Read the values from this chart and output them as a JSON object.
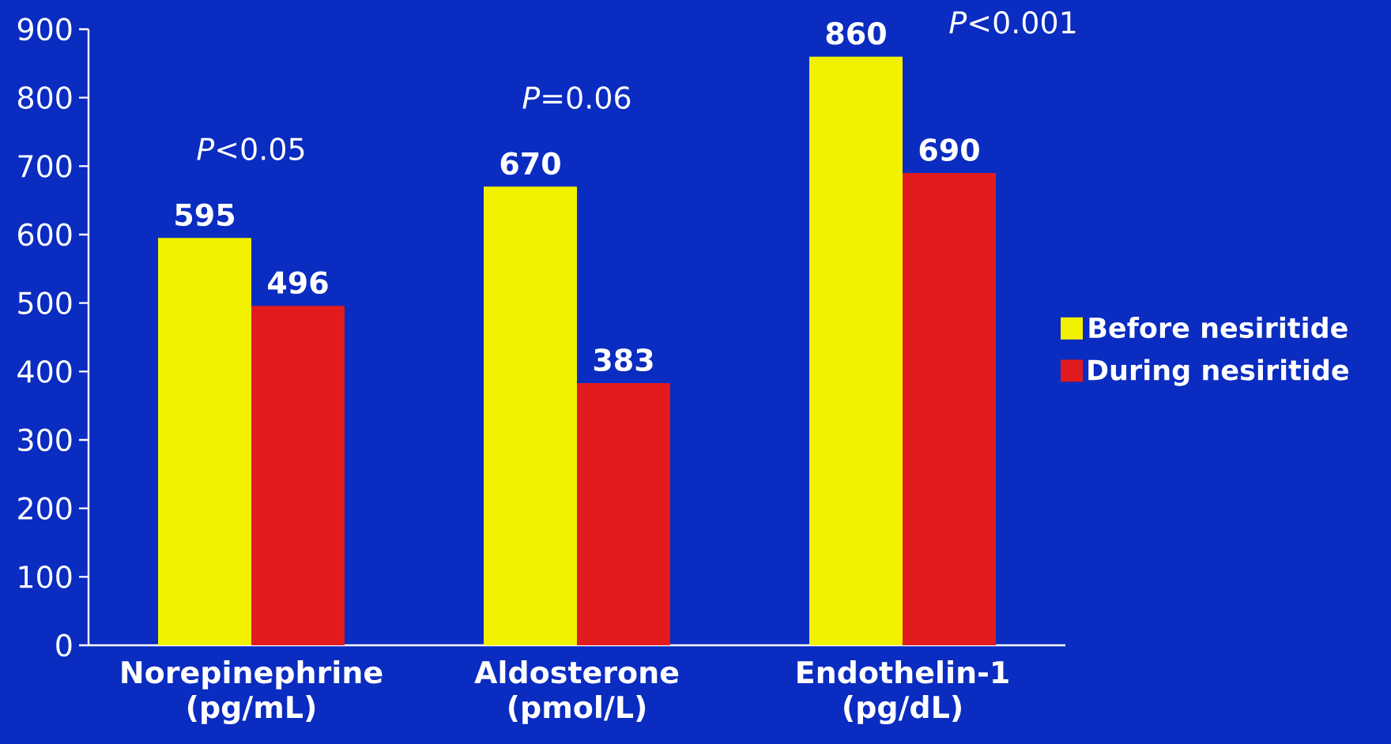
{
  "chart_data": {
    "type": "bar",
    "categories": [
      "Norepinephrine (pg/mL)",
      "Aldosterone (pmol/L)",
      "Endothelin-1 (pg/dL)"
    ],
    "series": [
      {
        "name": "Before nesiritide",
        "color": "#f2f200",
        "values": [
          595,
          670,
          860
        ]
      },
      {
        "name": "During nesiritide",
        "color": "#e21b1f",
        "values": [
          496,
          383,
          690
        ]
      }
    ],
    "ylim": [
      0,
      900
    ],
    "yticks": [
      0,
      100,
      200,
      300,
      400,
      500,
      600,
      700,
      800,
      900
    ],
    "data_labels": true,
    "legend": "right",
    "grid": false,
    "annotations": [
      "*P*<0.05",
      "*P*=0.06",
      "*P*<0.001"
    ]
  }
}
